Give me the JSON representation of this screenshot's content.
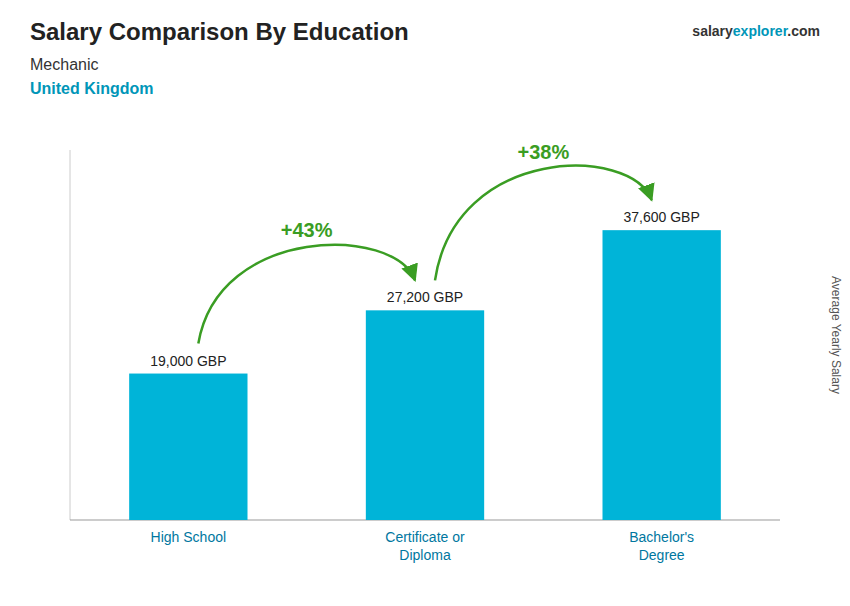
{
  "chart_data": {
    "type": "bar",
    "title": "Salary Comparison By Education",
    "subtitle": [
      "Mechanic",
      "United Kingdom"
    ],
    "ylabel": "Average Yearly Salary",
    "watermark": [
      "salary",
      "explorer",
      ".com"
    ],
    "categories": [
      "High School",
      "Certificate or\nDiploma",
      "Bachelor's\nDegree"
    ],
    "values": [
      19000,
      27200,
      37600
    ],
    "value_labels": [
      "19,000 GBP",
      "27,200 GBP",
      "37,600 GBP"
    ],
    "data_labels": true,
    "annotations": [
      "+43%",
      "+38%"
    ],
    "color": "#00b4d8",
    "ylim": [
      0,
      48000
    ],
    "tick_labels": false,
    "grid": false
  }
}
